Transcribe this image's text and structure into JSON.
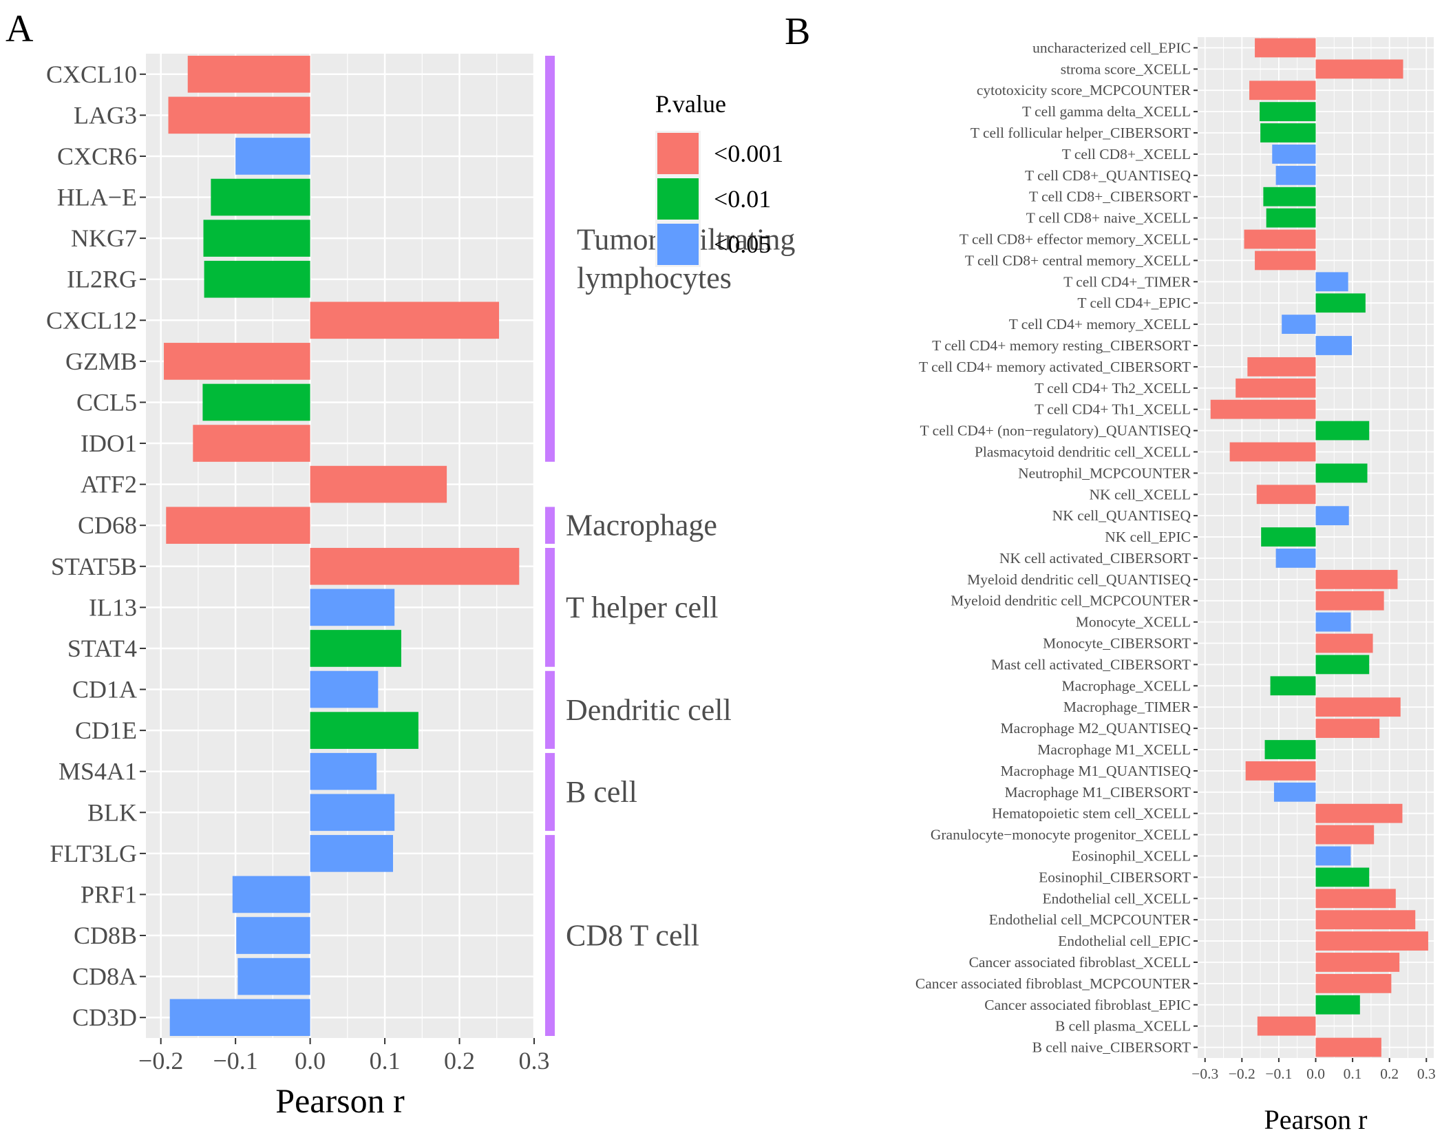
{
  "panels": {
    "a": {
      "letter": "A"
    },
    "b": {
      "letter": "B"
    }
  },
  "colors": {
    "p001": "#F8766D",
    "p01": "#00BA38",
    "p05": "#619CFF",
    "panel_bg": "#EBEBEB",
    "grid": "#FFFFFF",
    "bracket": "#C77CFF"
  },
  "legend": {
    "title": "P.value",
    "items": [
      {
        "label": "<0.001",
        "color_key": "p001"
      },
      {
        "label": "<0.01",
        "color_key": "p01"
      },
      {
        "label": "<0.05",
        "color_key": "p05"
      }
    ]
  },
  "groups": [
    {
      "label_lines": [
        "Tumor infiltrating",
        "lymphocytes"
      ],
      "from": "CXCL10",
      "to": "IDO1"
    },
    {
      "label_lines": [
        "Macrophage"
      ],
      "from": "CD68",
      "to": "CD68"
    },
    {
      "label_lines": [
        "T helper cell"
      ],
      "from": "STAT5B",
      "to": "STAT4"
    },
    {
      "label_lines": [
        "Dendritic cell"
      ],
      "from": "CD1A",
      "to": "CD1E"
    },
    {
      "label_lines": [
        "B cell"
      ],
      "from": "MS4A1",
      "to": "BLK"
    },
    {
      "label_lines": [
        "CD8 T cell"
      ],
      "from": "FLT3LG",
      "to": "CD3D"
    }
  ],
  "chart_data": [
    {
      "id": "A",
      "type": "bar",
      "orientation": "horizontal",
      "xlabel": "Pearson r",
      "ylabel": "",
      "xlim": [
        -0.22,
        0.3
      ],
      "xticks": [
        -0.2,
        -0.1,
        0.0,
        0.1,
        0.2,
        0.3
      ],
      "xtick_labels": [
        "−0.2",
        "−0.1",
        "0.0",
        "0.1",
        "0.2",
        "0.3"
      ],
      "categories": [
        "CXCL10",
        "LAG3",
        "CXCR6",
        "HLA−E",
        "NKG7",
        "IL2RG",
        "CXCL12",
        "GZMB",
        "CCL5",
        "IDO1",
        "ATF2",
        "CD68",
        "STAT5B",
        "IL13",
        "STAT4",
        "CD1A",
        "CD1E",
        "MS4A1",
        "BLK",
        "FLT3LG",
        "PRF1",
        "CD8B",
        "CD8A",
        "CD3D"
      ],
      "values": [
        -0.164,
        -0.19,
        -0.1,
        -0.133,
        -0.143,
        -0.142,
        0.253,
        -0.196,
        -0.144,
        -0.157,
        0.183,
        -0.193,
        0.28,
        0.113,
        0.122,
        0.091,
        0.145,
        0.089,
        0.113,
        0.111,
        -0.104,
        -0.099,
        -0.097,
        -0.188
      ],
      "pvalue_class": [
        "p001",
        "p001",
        "p05",
        "p01",
        "p01",
        "p01",
        "p001",
        "p001",
        "p01",
        "p001",
        "p001",
        "p001",
        "p001",
        "p05",
        "p01",
        "p05",
        "p01",
        "p05",
        "p05",
        "p05",
        "p05",
        "p05",
        "p05",
        "p05"
      ]
    },
    {
      "id": "B",
      "type": "bar",
      "orientation": "horizontal",
      "xlabel": "Pearson r",
      "ylabel": "",
      "xlim": [
        -0.32,
        0.32
      ],
      "xticks": [
        -0.3,
        -0.2,
        -0.1,
        0.0,
        0.1,
        0.2,
        0.3
      ],
      "xtick_labels": [
        "−0.3",
        "−0.2",
        "−0.1",
        "0.0",
        "0.1",
        "0.2",
        "0.3"
      ],
      "categories": [
        "uncharacterized cell_EPIC",
        "stroma score_XCELL",
        "cytotoxicity score_MCPCOUNTER",
        "T cell gamma delta_XCELL",
        "T cell follicular helper_CIBERSORT",
        "T cell CD8+_XCELL",
        "T cell CD8+_QUANTISEQ",
        "T cell CD8+_CIBERSORT",
        "T cell CD8+ naive_XCELL",
        "T cell CD8+ effector memory_XCELL",
        "T cell CD8+ central memory_XCELL",
        "T cell CD4+_TIMER",
        "T cell CD4+_EPIC",
        "T cell CD4+ memory_XCELL",
        "T cell CD4+ memory resting_CIBERSORT",
        "T cell CD4+ memory activated_CIBERSORT",
        "T cell CD4+ Th2_XCELL",
        "T cell CD4+ Th1_XCELL",
        "T cell CD4+ (non−regulatory)_QUANTISEQ",
        "Plasmacytoid dendritic cell_XCELL",
        "Neutrophil_MCPCOUNTER",
        "NK cell_XCELL",
        "NK cell_QUANTISEQ",
        "NK cell_EPIC",
        "NK cell activated_CIBERSORT",
        "Myeloid dendritic cell_QUANTISEQ",
        "Myeloid dendritic cell_MCPCOUNTER",
        "Monocyte_XCELL",
        "Monocyte_CIBERSORT",
        "Mast cell activated_CIBERSORT",
        "Macrophage_XCELL",
        "Macrophage_TIMER",
        "Macrophage M2_QUANTISEQ",
        "Macrophage M1_XCELL",
        "Macrophage M1_QUANTISEQ",
        "Macrophage M1_CIBERSORT",
        "Hematopoietic stem cell_XCELL",
        "Granulocyte−monocyte progenitor_XCELL",
        "Eosinophil_XCELL",
        "Eosinophil_CIBERSORT",
        "Endothelial cell_XCELL",
        "Endothelial cell_MCPCOUNTER",
        "Endothelial cell_EPIC",
        "Cancer associated fibroblast_XCELL",
        "Cancer associated fibroblast_MCPCOUNTER",
        "Cancer associated fibroblast_EPIC",
        "B cell plasma_XCELL",
        "B cell naive_CIBERSORT"
      ],
      "values": [
        -0.165,
        0.237,
        -0.18,
        -0.152,
        -0.15,
        -0.118,
        -0.108,
        -0.142,
        -0.134,
        -0.194,
        -0.165,
        0.088,
        0.135,
        -0.092,
        0.098,
        -0.185,
        -0.217,
        -0.285,
        0.145,
        -0.233,
        0.14,
        -0.16,
        0.09,
        -0.148,
        -0.108,
        0.222,
        0.185,
        0.095,
        0.155,
        0.145,
        -0.123,
        0.23,
        0.173,
        -0.138,
        -0.19,
        -0.113,
        0.235,
        0.158,
        0.095,
        0.145,
        0.217,
        0.27,
        0.305,
        0.227,
        0.205,
        0.12,
        -0.158,
        0.178
      ],
      "pvalue_class": [
        "p001",
        "p001",
        "p001",
        "p01",
        "p01",
        "p05",
        "p05",
        "p01",
        "p01",
        "p001",
        "p001",
        "p05",
        "p01",
        "p05",
        "p05",
        "p001",
        "p001",
        "p001",
        "p01",
        "p001",
        "p01",
        "p001",
        "p05",
        "p01",
        "p05",
        "p001",
        "p001",
        "p05",
        "p001",
        "p01",
        "p01",
        "p001",
        "p001",
        "p01",
        "p001",
        "p05",
        "p001",
        "p001",
        "p05",
        "p01",
        "p001",
        "p001",
        "p001",
        "p001",
        "p001",
        "p01",
        "p001",
        "p001"
      ]
    }
  ]
}
